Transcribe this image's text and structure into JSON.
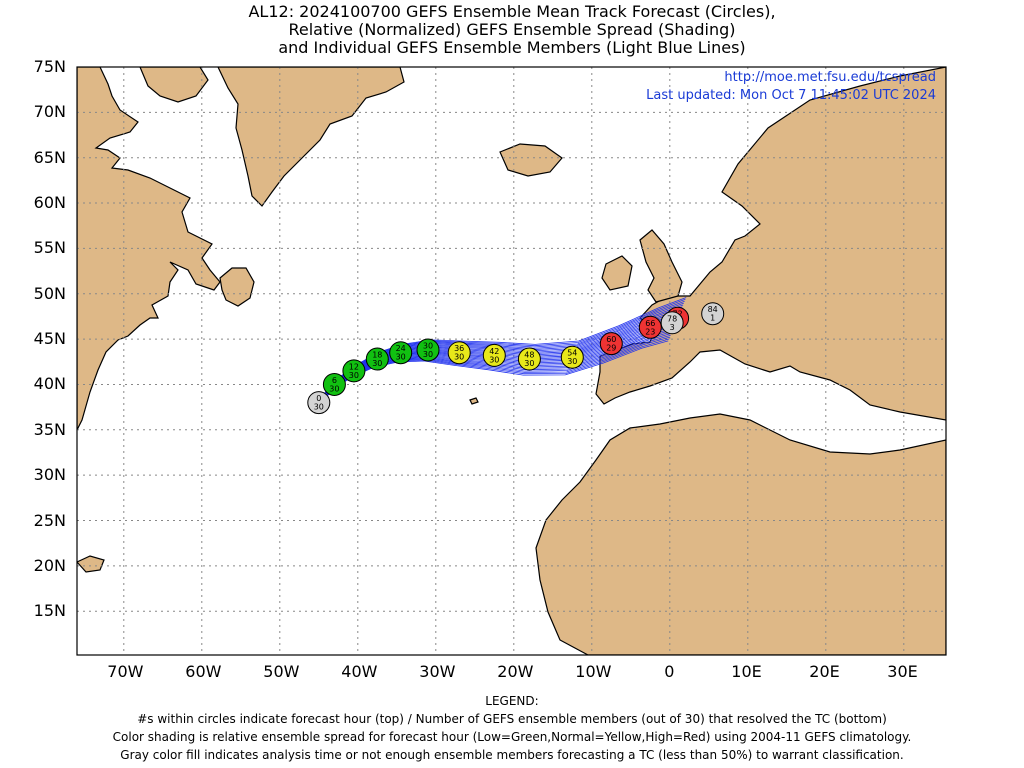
{
  "title": {
    "line1": "AL12: 2024100700 GEFS Ensemble Mean Track Forecast (Circles),",
    "line2": "Relative (Normalized) GEFS Ensemble Spread (Shading)",
    "line3": "and Individual GEFS Ensemble Members (Light Blue Lines)"
  },
  "source_url": "http://moe.met.fsu.edu/tcspread",
  "last_updated": "Last updated: Mon Oct 7 11:45:02 UTC 2024",
  "lat_labels": [
    "75N",
    "70N",
    "65N",
    "60N",
    "55N",
    "50N",
    "45N",
    "40N",
    "35N",
    "30N",
    "25N",
    "20N",
    "15N"
  ],
  "lon_labels": [
    "70W",
    "60W",
    "50W",
    "40W",
    "30W",
    "20W",
    "10W",
    "0",
    "10E",
    "20E",
    "30E"
  ],
  "legend": {
    "heading": "LEGEND:",
    "line1": "#s within circles indicate forecast hour (top) / Number of GEFS ensemble members (out of 30) that resolved the TC (bottom)",
    "line2": "Color shading is relative ensemble spread for forecast hour (Low=Green,Normal=Yellow,High=Red) using 2004-11 GEFS climatology.",
    "line3": "Gray color fill indicates analysis time or not enough ensemble members forecasting a TC (less than 50%) to warrant classification."
  },
  "colors": {
    "land": "#deb887",
    "ocean": "#ffffff",
    "low": "#11c011",
    "normal": "#e8e81a",
    "high": "#ee3333",
    "gray": "#d3d3d3",
    "member": "#2233ee"
  },
  "forecast_points": [
    {
      "hour": "0",
      "members": "30",
      "lon": -45,
      "lat": 38,
      "spread": "gray"
    },
    {
      "hour": "6",
      "members": "30",
      "lon": -43,
      "lat": 40,
      "spread": "low"
    },
    {
      "hour": "12",
      "members": "30",
      "lon": -40.5,
      "lat": 41.5,
      "spread": "low"
    },
    {
      "hour": "18",
      "members": "30",
      "lon": -37.5,
      "lat": 42.8,
      "spread": "low"
    },
    {
      "hour": "24",
      "members": "30",
      "lon": -34.5,
      "lat": 43.5,
      "spread": "low"
    },
    {
      "hour": "30",
      "members": "30",
      "lon": -31,
      "lat": 43.8,
      "spread": "low"
    },
    {
      "hour": "36",
      "members": "30",
      "lon": -27,
      "lat": 43.5,
      "spread": "normal"
    },
    {
      "hour": "42",
      "members": "30",
      "lon": -22.5,
      "lat": 43.2,
      "spread": "normal"
    },
    {
      "hour": "48",
      "members": "30",
      "lon": -18,
      "lat": 42.8,
      "spread": "normal"
    },
    {
      "hour": "54",
      "members": "30",
      "lon": -12.5,
      "lat": 43,
      "spread": "normal"
    },
    {
      "hour": "60",
      "members": "29",
      "lon": -7.5,
      "lat": 44.5,
      "spread": "high"
    },
    {
      "hour": "66",
      "members": "23",
      "lon": -2.5,
      "lat": 46.3,
      "spread": "high"
    },
    {
      "hour": "72",
      "members": "",
      "lon": 1,
      "lat": 47.3,
      "spread": "high"
    },
    {
      "hour": "78",
      "members": "3",
      "lon": 0.3,
      "lat": 46.8,
      "spread": "gray"
    },
    {
      "hour": "84",
      "members": "1",
      "lon": 5.5,
      "lat": 47.8,
      "spread": "gray"
    }
  ]
}
